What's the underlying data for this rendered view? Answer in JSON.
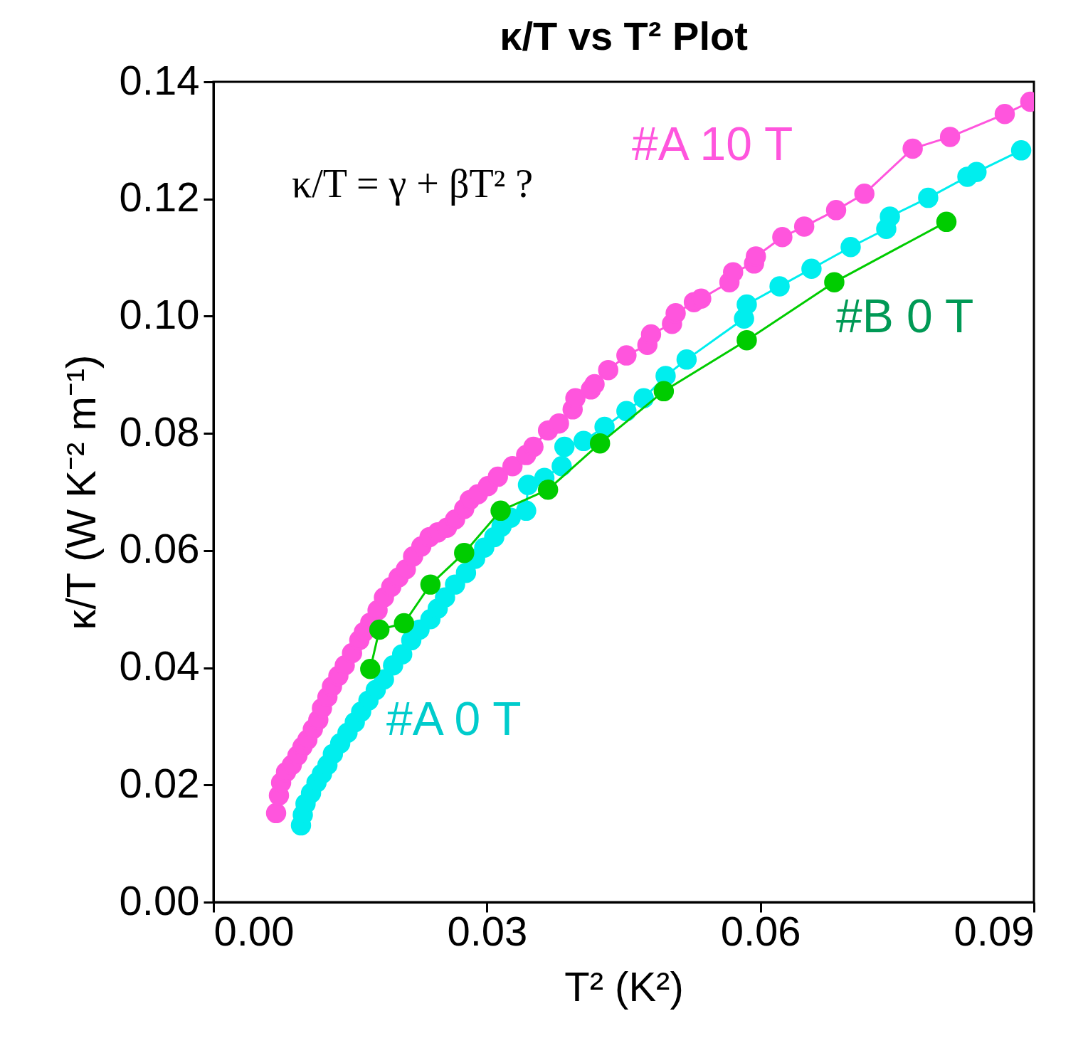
{
  "chart_data": {
    "type": "line",
    "title": "κ/T vs T² Plot",
    "xlabel": "T² (K²)",
    "ylabel": "κ/T (W K⁻² m⁻¹)",
    "annotations": [
      "κ/T = γ + βT² ?"
    ],
    "xlim": [
      0,
      0.09
    ],
    "xticks": [
      {
        "value": 0,
        "label": "0.00"
      },
      {
        "value": 0.03,
        "label": "0.03"
      },
      {
        "value": 0.06,
        "label": "0.06"
      },
      {
        "value": 0.09,
        "label": "0.09"
      }
    ],
    "ylim": [
      0,
      0.14
    ],
    "yticks": [
      {
        "value": 0,
        "label": "0.00"
      },
      {
        "value": 0.02,
        "label": "0.02"
      },
      {
        "value": 0.04,
        "label": "0.04"
      },
      {
        "value": 0.06,
        "label": "0.06"
      },
      {
        "value": 0.08,
        "label": "0.08"
      },
      {
        "value": 0.1,
        "label": "0.10"
      },
      {
        "value": 0.12,
        "label": "0.12"
      },
      {
        "value": 0.14,
        "label": "0.14"
      }
    ],
    "marker": "circle",
    "line_style": "solid",
    "series": [
      {
        "name": "#A 10 T",
        "color": "#ff55dd",
        "x": [
          0.00687,
          0.00718,
          0.00742,
          0.00796,
          0.00859,
          0.00921,
          0.00976,
          0.0103,
          0.0109,
          0.0115,
          0.0119,
          0.0125,
          0.013,
          0.0137,
          0.0144,
          0.0152,
          0.016,
          0.0165,
          0.0172,
          0.018,
          0.0187,
          0.0195,
          0.0203,
          0.0211,
          0.0219,
          0.0228,
          0.0237,
          0.0246,
          0.0256,
          0.0265,
          0.0275,
          0.0281,
          0.029,
          0.0301,
          0.0312,
          0.0328,
          0.0343,
          0.0351,
          0.0367,
          0.0379,
          0.0394,
          0.0397,
          0.0414,
          0.0418,
          0.0433,
          0.0453,
          0.0476,
          0.048,
          0.0503,
          0.0507,
          0.0527,
          0.0535,
          0.0566,
          0.057,
          0.0593,
          0.0595,
          0.0624,
          0.0648,
          0.0683,
          0.0714,
          0.0767,
          0.0808,
          0.0868,
          0.0896
        ],
        "values": [
          0.0152,
          0.0182,
          0.0204,
          0.0222,
          0.0234,
          0.025,
          0.0265,
          0.0277,
          0.0295,
          0.0311,
          0.0331,
          0.035,
          0.0368,
          0.0386,
          0.0404,
          0.0425,
          0.0447,
          0.0461,
          0.0477,
          0.0498,
          0.052,
          0.0538,
          0.0554,
          0.0568,
          0.059,
          0.0607,
          0.0623,
          0.0631,
          0.0639,
          0.0653,
          0.0671,
          0.0686,
          0.0696,
          0.071,
          0.0726,
          0.0744,
          0.0763,
          0.0777,
          0.0805,
          0.0817,
          0.0841,
          0.086,
          0.0875,
          0.0884,
          0.0908,
          0.0933,
          0.0951,
          0.0969,
          0.0987,
          0.1005,
          0.1024,
          0.103,
          0.1058,
          0.1075,
          0.109,
          0.1102,
          0.1135,
          0.1153,
          0.1181,
          0.1209,
          0.1286,
          0.1306,
          0.1345,
          0.1366
        ]
      },
      {
        "name": "#A 0 T",
        "color": "#00eeee",
        "x": [
          0.0096,
          0.0098,
          0.0101,
          0.0107,
          0.0113,
          0.0119,
          0.0125,
          0.0131,
          0.0139,
          0.0147,
          0.0155,
          0.0162,
          0.017,
          0.0178,
          0.0187,
          0.0197,
          0.0207,
          0.0217,
          0.0226,
          0.0238,
          0.0246,
          0.0254,
          0.0265,
          0.0277,
          0.0287,
          0.0297,
          0.0308,
          0.0316,
          0.0326,
          0.0343,
          0.0345,
          0.0363,
          0.0382,
          0.0385,
          0.0406,
          0.0429,
          0.0453,
          0.0472,
          0.0496,
          0.0519,
          0.0582,
          0.0585,
          0.0621,
          0.0656,
          0.0699,
          0.0738,
          0.0742,
          0.0784,
          0.0827,
          0.0837,
          0.0886
        ],
        "values": [
          0.0131,
          0.0149,
          0.0168,
          0.0186,
          0.0204,
          0.0219,
          0.0234,
          0.0253,
          0.0271,
          0.0289,
          0.0307,
          0.0325,
          0.0344,
          0.0362,
          0.038,
          0.0404,
          0.0423,
          0.0447,
          0.0465,
          0.0483,
          0.0501,
          0.052,
          0.0542,
          0.0562,
          0.0586,
          0.0605,
          0.0623,
          0.0641,
          0.0656,
          0.0668,
          0.0712,
          0.0724,
          0.0744,
          0.0777,
          0.0787,
          0.0811,
          0.0838,
          0.086,
          0.0898,
          0.0926,
          0.0996,
          0.102,
          0.1051,
          0.1081,
          0.1118,
          0.1149,
          0.117,
          0.1202,
          0.1238,
          0.1246,
          0.1283
        ]
      },
      {
        "name": "#B 0 T",
        "color": "#00cc00",
        "x": [
          0.0172,
          0.0182,
          0.0209,
          0.0238,
          0.0275,
          0.0315,
          0.0367,
          0.0424,
          0.0494,
          0.0585,
          0.0681,
          0.0804
        ],
        "values": [
          0.0398,
          0.0465,
          0.0476,
          0.0542,
          0.0596,
          0.0668,
          0.0704,
          0.0783,
          0.0872,
          0.0959,
          0.1058,
          0.1161
        ]
      }
    ]
  }
}
